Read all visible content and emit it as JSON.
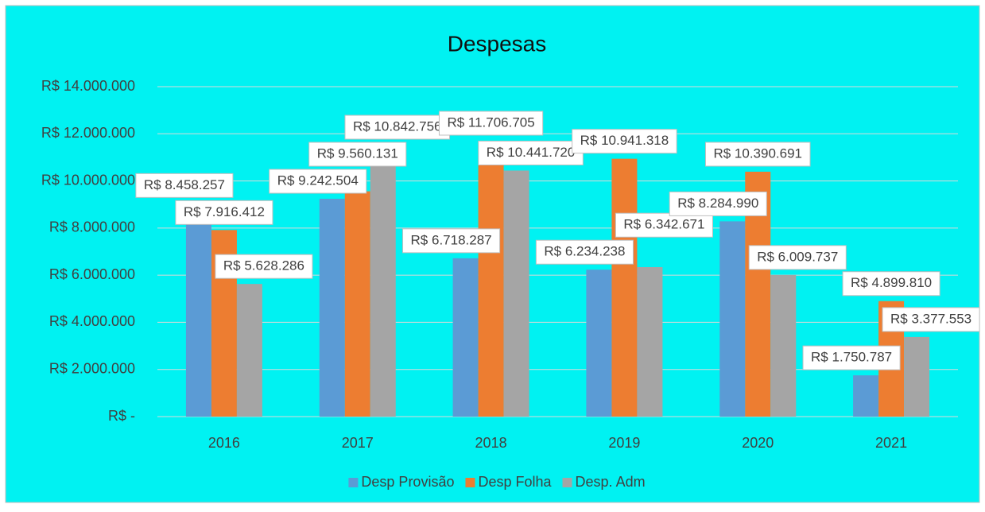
{
  "chart_data": {
    "type": "bar",
    "title": "Despesas",
    "categories": [
      "2016",
      "2017",
      "2018",
      "2019",
      "2020",
      "2021"
    ],
    "series": [
      {
        "name": "Desp Provisão",
        "color": "#5b9bd5",
        "values": [
          8458257,
          9242504,
          6718287,
          6234238,
          8284990,
          1750787
        ],
        "value_labels": [
          "R$ 8.458.257",
          "R$ 9.242.504",
          "R$ 6.718.287",
          "R$ 6.234.238",
          "R$ 8.284.990",
          "R$ 1.750.787"
        ]
      },
      {
        "name": "Desp Folha",
        "color": "#ed7d31",
        "values": [
          7916412,
          9560131,
          11706705,
          10941318,
          10390691,
          4899810
        ],
        "value_labels": [
          "R$ 7.916.412",
          "R$ 9.560.131",
          "R$ 11.706.705",
          "R$ 10.941.318",
          "R$ 10.390.691",
          "R$ 4.899.810"
        ]
      },
      {
        "name": "Desp. Adm",
        "color": "#a5a5a5",
        "values": [
          5628286,
          10842756,
          10441720,
          6342671,
          6009737,
          3377553
        ],
        "value_labels": [
          "R$ 5.628.286",
          "R$ 10.842.756",
          "R$ 10.441.720",
          "R$ 6.342.671",
          "R$ 6.009.737",
          "R$ 3.377.553"
        ]
      }
    ],
    "ylim": [
      0,
      14000000
    ],
    "yticks": [
      {
        "value": 0,
        "label": "R$ -"
      },
      {
        "value": 2000000,
        "label": "R$ 2.000.000"
      },
      {
        "value": 4000000,
        "label": "R$ 4.000.000"
      },
      {
        "value": 6000000,
        "label": "R$ 6.000.000"
      },
      {
        "value": 8000000,
        "label": "R$ 8.000.000"
      },
      {
        "value": 10000000,
        "label": "R$ 10.000.000"
      },
      {
        "value": 12000000,
        "label": "R$ 12.000.000"
      },
      {
        "value": 14000000,
        "label": "R$ 14.000.000"
      }
    ],
    "grid": true,
    "legend": "bottom"
  }
}
